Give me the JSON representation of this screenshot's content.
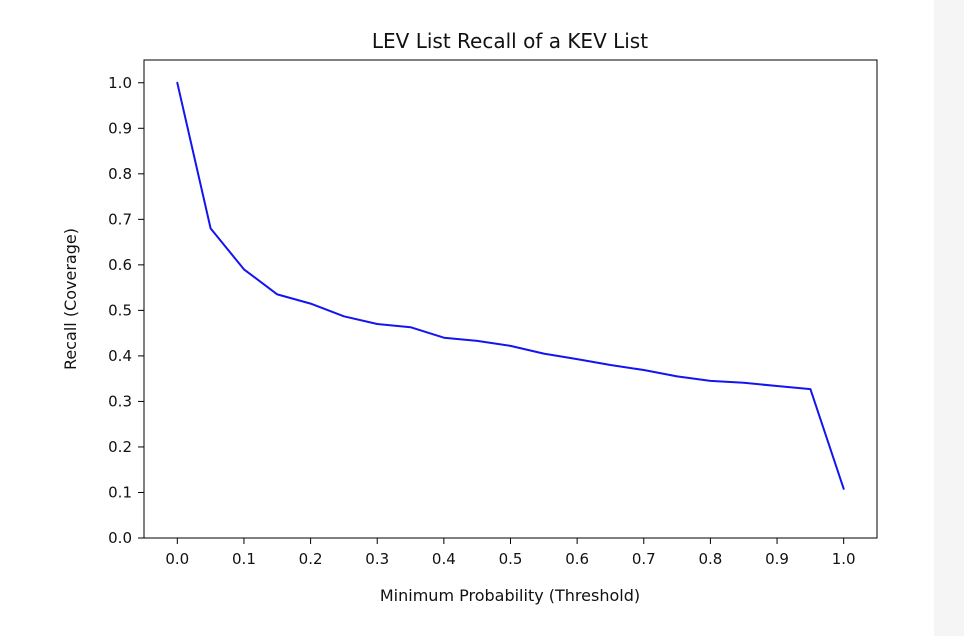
{
  "colors": {
    "line": "#1414f0",
    "axes": "#000000",
    "background": "#ffffff",
    "side_strip": "#f5f5f5"
  },
  "chart_data": {
    "type": "line",
    "title": "LEV List Recall of a KEV List",
    "xlabel": "Minimum Probability (Threshold)",
    "ylabel": "Recall (Coverage)",
    "xlim": [
      -0.05,
      1.05
    ],
    "ylim": [
      0.0,
      1.05
    ],
    "x_ticks": [
      "0.0",
      "0.1",
      "0.2",
      "0.3",
      "0.4",
      "0.5",
      "0.6",
      "0.7",
      "0.8",
      "0.9",
      "1.0"
    ],
    "y_ticks": [
      "0.0",
      "0.1",
      "0.2",
      "0.3",
      "0.4",
      "0.5",
      "0.6",
      "0.7",
      "0.8",
      "0.9",
      "1.0"
    ],
    "grid": false,
    "series": [
      {
        "x": [
          0.0,
          0.05,
          0.1,
          0.15,
          0.2,
          0.25,
          0.3,
          0.35,
          0.4,
          0.45,
          0.5,
          0.55,
          0.6,
          0.65,
          0.7,
          0.75,
          0.8,
          0.85,
          0.9,
          0.95,
          1.0
        ],
        "y": [
          1.0,
          0.68,
          0.59,
          0.535,
          0.515,
          0.487,
          0.47,
          0.463,
          0.44,
          0.433,
          0.422,
          0.405,
          0.393,
          0.38,
          0.369,
          0.355,
          0.345,
          0.341,
          0.334,
          0.327,
          0.108
        ]
      }
    ]
  }
}
